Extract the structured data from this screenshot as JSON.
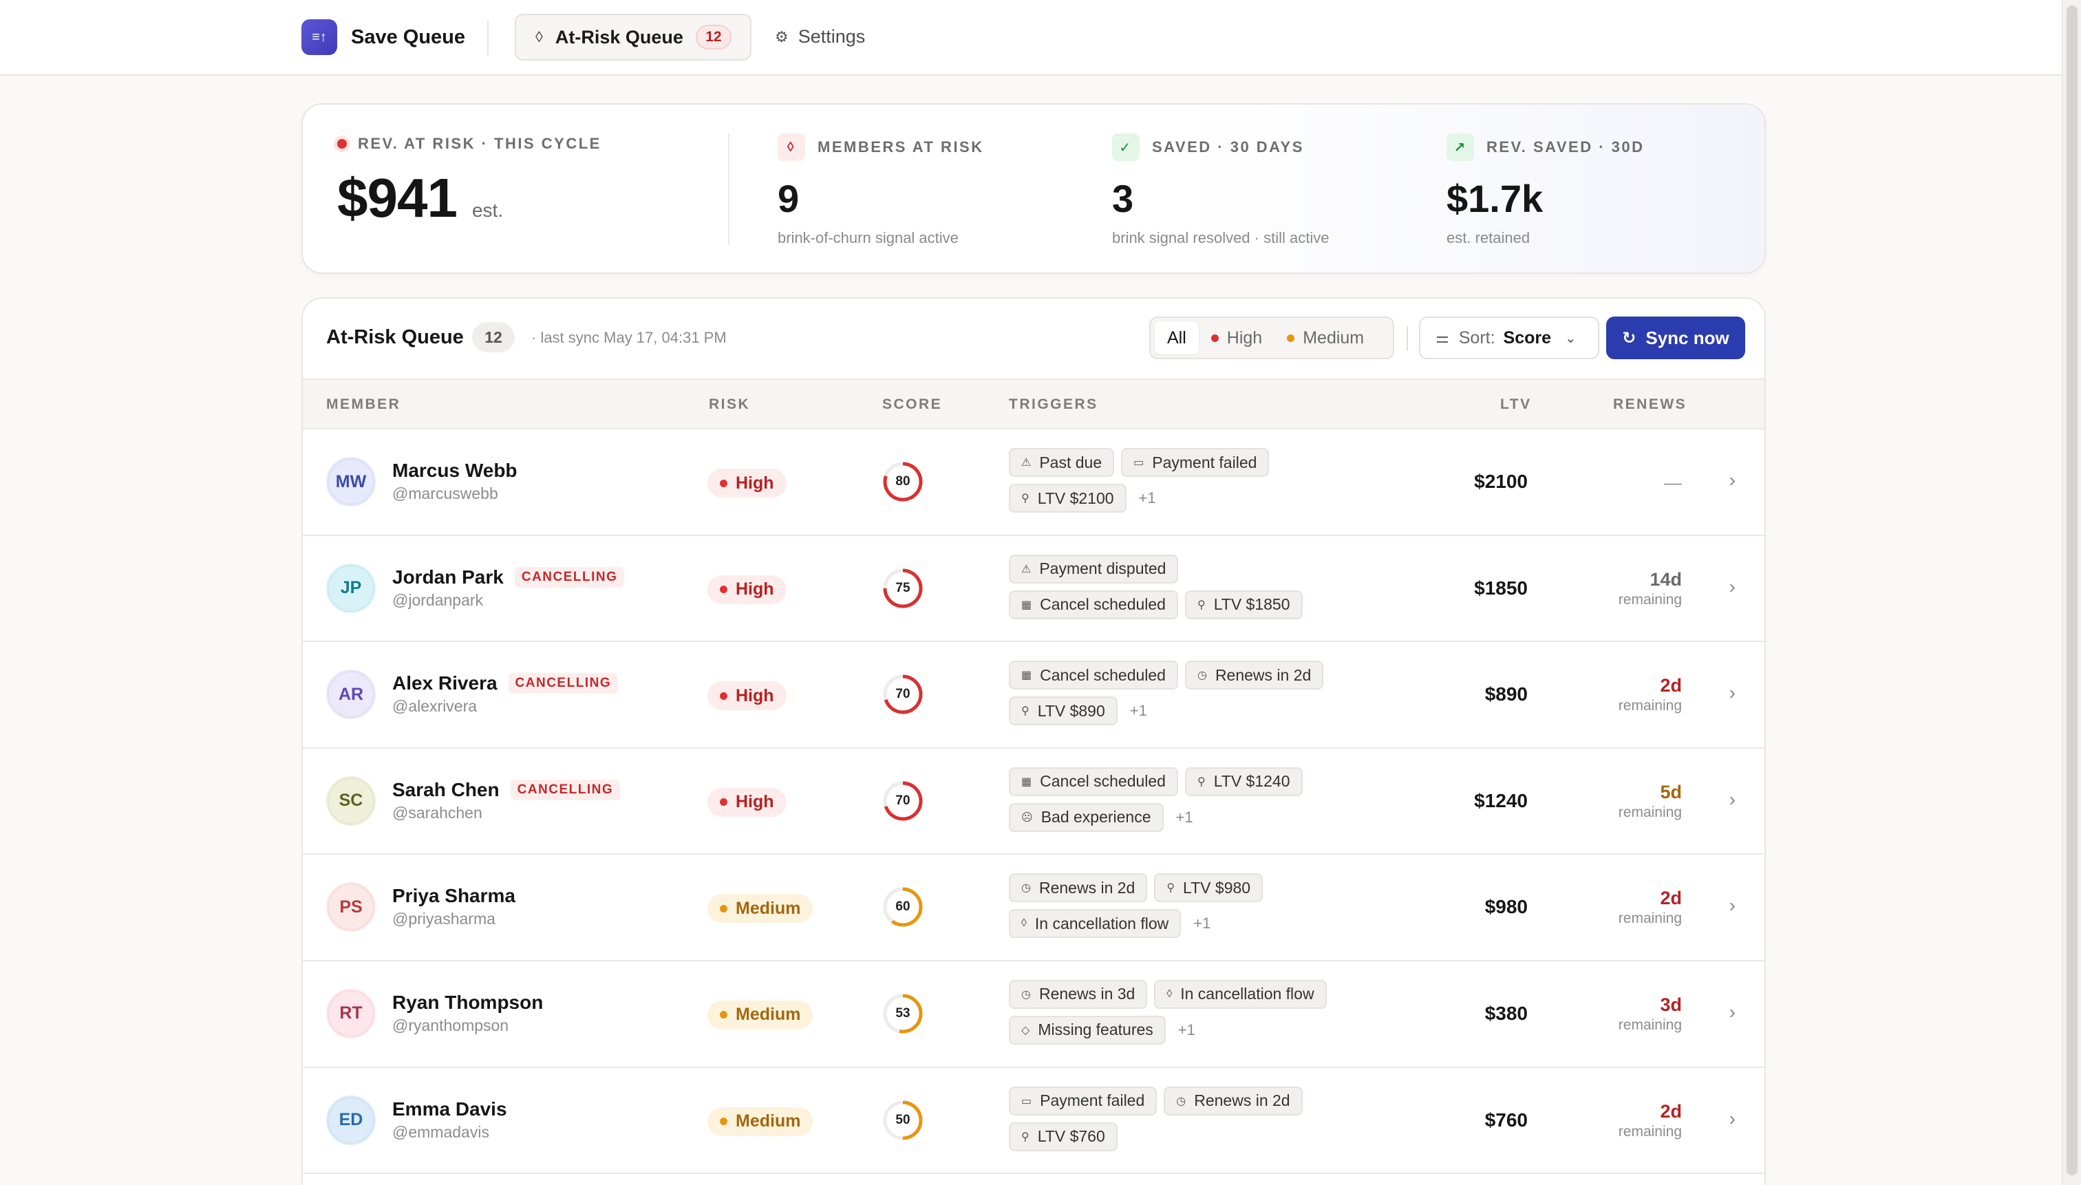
{
  "app": {
    "name": "Save Queue",
    "logo_icon": "queue-logo-icon",
    "tabs": [
      {
        "label": "At-Risk Queue",
        "icon": "drop-icon",
        "count": "12",
        "active": true
      },
      {
        "label": "Settings",
        "icon": "gear-icon",
        "active": false
      }
    ]
  },
  "stats": {
    "primary": {
      "label": "REV. AT RISK · THIS CYCLE",
      "value": "$941",
      "unit": "est."
    },
    "members": {
      "label": "MEMBERS AT RISK",
      "value": "9",
      "sub": "brink-of-churn signal active",
      "icon": "drop-icon"
    },
    "saved": {
      "label": "SAVED · 30 DAYS",
      "value": "3",
      "sub": "brink signal resolved · still active",
      "icon": "check-icon"
    },
    "rev_saved": {
      "label": "REV. SAVED · 30D",
      "value": "$1.7k",
      "sub": "est. retained",
      "icon": "trend-up-icon"
    }
  },
  "queue": {
    "title": "At-Risk Queue",
    "count": "12",
    "last_sync": "· last sync May 17, 04:31 PM",
    "filters": [
      {
        "label": "All",
        "active": true
      },
      {
        "label": "High",
        "dot": "#e03131"
      },
      {
        "label": "Medium",
        "dot": "#e8950e"
      }
    ],
    "sort": {
      "label": "Sort:",
      "value": "Score"
    },
    "sync_label": "Sync now",
    "columns": {
      "member": "MEMBER",
      "risk": "RISK",
      "score": "SCORE",
      "triggers": "TRIGGERS",
      "ltv": "LTV",
      "renews": "RENEWS"
    },
    "members": [
      {
        "initials": "MW",
        "name": "Marcus Webb",
        "handle": "@marcuswebb",
        "cancelling": "",
        "risk": "High",
        "score": 80,
        "avatar_bg": "#e6eafc",
        "avatar_fg": "#3b4aa8",
        "triggers": [
          [
            {
              "icon": "warning-icon",
              "label": "Past due"
            },
            {
              "icon": "card-icon",
              "label": "Payment failed"
            }
          ],
          [
            {
              "icon": "person-icon",
              "label": "LTV $2100"
            }
          ]
        ],
        "more": "+1",
        "ltv": "$2100",
        "renew_days": "",
        "renew_sub": "",
        "renew_color": "#161616",
        "renew_dash": "—"
      },
      {
        "initials": "JP",
        "name": "Jordan Park",
        "handle": "@jordanpark",
        "cancelling": "CANCELLING",
        "risk": "High",
        "score": 75,
        "avatar_bg": "#d8f3f7",
        "avatar_fg": "#117b8a",
        "triggers": [
          [
            {
              "icon": "warning-icon",
              "label": "Payment disputed"
            }
          ],
          [
            {
              "icon": "calendar-x-icon",
              "label": "Cancel scheduled"
            },
            {
              "icon": "person-icon",
              "label": "LTV $1850"
            }
          ]
        ],
        "more": "",
        "ltv": "$1850",
        "renew_days": "14d",
        "renew_sub": "remaining",
        "renew_color": "#6a6a6a",
        "renew_dash": ""
      },
      {
        "initials": "AR",
        "name": "Alex Rivera",
        "handle": "@alexrivera",
        "cancelling": "CANCELLING",
        "risk": "High",
        "score": 70,
        "avatar_bg": "#ece9fb",
        "avatar_fg": "#5a4bb0",
        "triggers": [
          [
            {
              "icon": "calendar-x-icon",
              "label": "Cancel scheduled"
            },
            {
              "icon": "clock-icon",
              "label": "Renews in 2d"
            }
          ],
          [
            {
              "icon": "person-icon",
              "label": "LTV $890"
            }
          ]
        ],
        "more": "+1",
        "ltv": "$890",
        "renew_days": "2d",
        "renew_sub": "remaining",
        "renew_color": "#b42323",
        "renew_dash": ""
      },
      {
        "initials": "SC",
        "name": "Sarah Chen",
        "handle": "@sarahchen",
        "cancelling": "CANCELLING",
        "risk": "High",
        "score": 70,
        "avatar_bg": "#eef0d9",
        "avatar_fg": "#5b6320",
        "triggers": [
          [
            {
              "icon": "calendar-x-icon",
              "label": "Cancel scheduled"
            },
            {
              "icon": "person-icon",
              "label": "LTV $1240"
            }
          ],
          [
            {
              "icon": "frown-icon",
              "label": "Bad experience"
            }
          ]
        ],
        "more": "+1",
        "ltv": "$1240",
        "renew_days": "5d",
        "renew_sub": "remaining",
        "renew_color": "#a3670f",
        "renew_dash": ""
      },
      {
        "initials": "PS",
        "name": "Priya Sharma",
        "handle": "@priyasharma",
        "cancelling": "",
        "risk": "Medium",
        "score": 60,
        "avatar_bg": "#fde8e8",
        "avatar_fg": "#b53a3a",
        "triggers": [
          [
            {
              "icon": "clock-icon",
              "label": "Renews in 2d"
            },
            {
              "icon": "person-icon",
              "label": "LTV $980"
            }
          ],
          [
            {
              "icon": "drop-icon",
              "label": "In cancellation flow"
            }
          ]
        ],
        "more": "+1",
        "ltv": "$980",
        "renew_days": "2d",
        "renew_sub": "remaining",
        "renew_color": "#b42323",
        "renew_dash": ""
      },
      {
        "initials": "RT",
        "name": "Ryan Thompson",
        "handle": "@ryanthompson",
        "cancelling": "",
        "risk": "Medium",
        "score": 53,
        "avatar_bg": "#fde6ec",
        "avatar_fg": "#a8324f",
        "triggers": [
          [
            {
              "icon": "clock-icon",
              "label": "Renews in 3d"
            },
            {
              "icon": "drop-icon",
              "label": "In cancellation flow"
            }
          ],
          [
            {
              "icon": "diamond-icon",
              "label": "Missing features"
            }
          ]
        ],
        "more": "+1",
        "ltv": "$380",
        "renew_days": "3d",
        "renew_sub": "remaining",
        "renew_color": "#b42323",
        "renew_dash": ""
      },
      {
        "initials": "ED",
        "name": "Emma Davis",
        "handle": "@emmadavis",
        "cancelling": "",
        "risk": "Medium",
        "score": 50,
        "avatar_bg": "#dcecfb",
        "avatar_fg": "#2a6aa8",
        "triggers": [
          [
            {
              "icon": "card-icon",
              "label": "Payment failed"
            },
            {
              "icon": "clock-icon",
              "label": "Renews in 2d"
            }
          ],
          [
            {
              "icon": "person-icon",
              "label": "LTV $760"
            }
          ]
        ],
        "more": "",
        "ltv": "$760",
        "renew_days": "2d",
        "renew_sub": "remaining",
        "renew_color": "#b42323",
        "renew_dash": ""
      }
    ]
  }
}
